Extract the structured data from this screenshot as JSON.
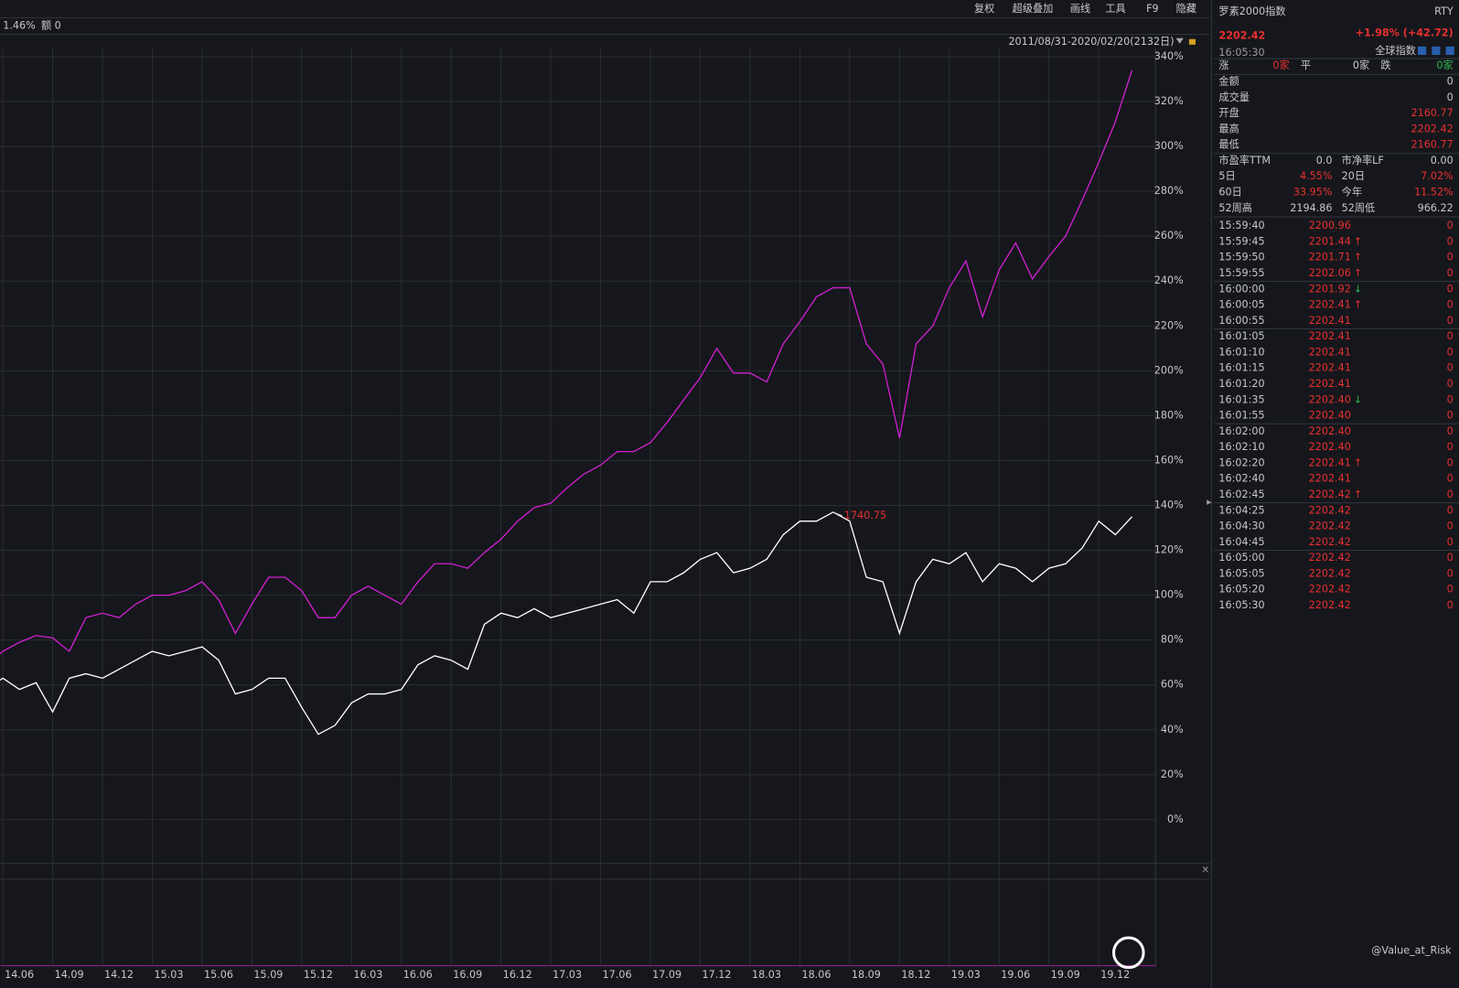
{
  "toolbar": {
    "items": [
      "复权",
      "超级叠加",
      "画线",
      "工具",
      "F9",
      "隐藏"
    ],
    "info": "1.46%",
    "amount": "额 0",
    "range": "2011/08/31-2020/02/20(2132日)"
  },
  "chart_data": {
    "type": "line",
    "categories": [
      null,
      "14.06",
      null,
      null,
      "14.09",
      null,
      null,
      "14.12",
      null,
      null,
      "15.03",
      null,
      null,
      "15.06",
      null,
      null,
      "15.09",
      null,
      null,
      "15.12",
      null,
      null,
      "16.03",
      null,
      null,
      "16.06",
      null,
      null,
      "16.09",
      null,
      null,
      "16.12",
      null,
      null,
      "17.03",
      null,
      null,
      "17.06",
      null,
      null,
      "17.09",
      null,
      null,
      "17.12",
      null,
      null,
      "18.03",
      null,
      null,
      "18.06",
      null,
      null,
      "18.09",
      null,
      null,
      "18.12",
      null,
      null,
      "19.03",
      null,
      null,
      "19.06",
      null,
      null,
      "19.09",
      null,
      null,
      "19.12",
      null,
      null
    ],
    "series": [
      {
        "color": "#d21fd2",
        "values": [
          69,
          75,
          79,
          82,
          81,
          75,
          90,
          92,
          90,
          96,
          100,
          100,
          102,
          106,
          98,
          83,
          96,
          108,
          108,
          102,
          90,
          90,
          100,
          104,
          100,
          96,
          106,
          114,
          114,
          112,
          119,
          125,
          133,
          139,
          141,
          148,
          154,
          158,
          164,
          164,
          168,
          177,
          187,
          197,
          210,
          199,
          199,
          195,
          212,
          222,
          233,
          237,
          237,
          212,
          203,
          170,
          212,
          220,
          237,
          249,
          224,
          245,
          257,
          241,
          251,
          260,
          276,
          293,
          311,
          334
        ]
      },
      {
        "color": "#ffffff",
        "values": [
          58,
          63,
          58,
          61,
          48,
          63,
          65,
          63,
          67,
          71,
          75,
          73,
          75,
          77,
          71,
          56,
          58,
          63,
          63,
          50,
          38,
          42,
          52,
          56,
          56,
          58,
          69,
          73,
          71,
          67,
          87,
          92,
          90,
          94,
          90,
          92,
          94,
          96,
          98,
          92,
          106,
          106,
          110,
          116,
          119,
          110,
          112,
          116,
          127,
          133,
          133,
          137,
          133,
          108,
          106,
          83,
          106,
          116,
          114,
          119,
          106,
          114,
          112,
          106,
          112,
          114,
          121,
          133,
          127,
          135
        ]
      }
    ],
    "annotation": "1740.75",
    "ylim": [
      -19.5,
      343.7
    ],
    "yticks": [
      {
        "value": 0,
        "label": "0%"
      },
      {
        "value": 20,
        "label": "20%"
      },
      {
        "value": 40,
        "label": "40%"
      },
      {
        "value": 60,
        "label": "60%"
      },
      {
        "value": 80,
        "label": "80%"
      },
      {
        "value": 100,
        "label": "100%"
      },
      {
        "value": 120,
        "label": "120%"
      },
      {
        "value": 140,
        "label": "140%"
      },
      {
        "value": 160,
        "label": "160%"
      },
      {
        "value": 180,
        "label": "180%"
      },
      {
        "value": 200,
        "label": "200%"
      },
      {
        "value": 220,
        "label": "220%"
      },
      {
        "value": 240,
        "label": "240%"
      },
      {
        "value": 260,
        "label": "260%"
      },
      {
        "value": 280,
        "label": "280%"
      },
      {
        "value": 300,
        "label": "300%"
      },
      {
        "value": 320,
        "label": "320%"
      },
      {
        "value": 340,
        "label": "340%"
      }
    ],
    "grid": true
  },
  "panel": {
    "name": "罗素2000指数",
    "code": "RTY",
    "price": "2202.42",
    "change": "+1.98% (+42.72)",
    "time": "16:05:30",
    "market": "全球指数",
    "breadth": [
      "涨",
      "0家",
      "平",
      "0家",
      "跌",
      "0家"
    ],
    "stats": [
      [
        "金额",
        "0"
      ],
      [
        "成交量",
        "0"
      ],
      [
        "开盘",
        "2160.77"
      ],
      [
        "最高",
        "2202.42"
      ],
      [
        "最低",
        "2160.77"
      ]
    ],
    "pairs": [
      [
        "市盈率TTM",
        "0.0",
        "市净率LF",
        "0.00"
      ],
      [
        "5日",
        "4.55%",
        "20日",
        "7.02%"
      ],
      [
        "60日",
        "33.95%",
        "今年",
        "11.52%"
      ],
      [
        "52周高",
        "2194.86",
        "52周低",
        "966.22"
      ]
    ],
    "ticks": [
      [
        [
          "15:59:40",
          "2200.96",
          "",
          "0"
        ],
        [
          "15:59:45",
          "2201.44",
          "↑",
          "0"
        ],
        [
          "15:59:50",
          "2201.71",
          "↑",
          "0"
        ],
        [
          "15:59:55",
          "2202.06",
          "↑",
          "0"
        ]
      ],
      [
        [
          "16:00:00",
          "2201.92",
          "↓",
          "0"
        ],
        [
          "16:00:05",
          "2202.41",
          "↑",
          "0"
        ],
        [
          "16:00:55",
          "2202.41",
          "",
          "0"
        ]
      ],
      [
        [
          "16:01:05",
          "2202.41",
          "",
          "0"
        ],
        [
          "16:01:10",
          "2202.41",
          "",
          "0"
        ],
        [
          "16:01:15",
          "2202.41",
          "",
          "0"
        ],
        [
          "16:01:20",
          "2202.41",
          "",
          "0"
        ],
        [
          "16:01:35",
          "2202.40",
          "↓",
          "0"
        ],
        [
          "16:01:55",
          "2202.40",
          "",
          "0"
        ]
      ],
      [
        [
          "16:02:00",
          "2202.40",
          "",
          "0"
        ],
        [
          "16:02:10",
          "2202.40",
          "",
          "0"
        ],
        [
          "16:02:20",
          "2202.41",
          "↑",
          "0"
        ],
        [
          "16:02:40",
          "2202.41",
          "",
          "0"
        ],
        [
          "16:02:45",
          "2202.42",
          "↑",
          "0"
        ]
      ],
      [
        [
          "16:04:25",
          "2202.42",
          "",
          "0"
        ],
        [
          "16:04:30",
          "2202.42",
          "",
          "0"
        ],
        [
          "16:04:45",
          "2202.42",
          "",
          "0"
        ]
      ],
      [
        [
          "16:05:00",
          "2202.42",
          "",
          "0"
        ],
        [
          "16:05:05",
          "2202.42",
          "",
          "0"
        ],
        [
          "16:05:20",
          "2202.42",
          "",
          "0"
        ],
        [
          "16:05:30",
          "2202.42",
          "",
          "0"
        ]
      ]
    ]
  },
  "watermark": "@Value_at_Risk"
}
